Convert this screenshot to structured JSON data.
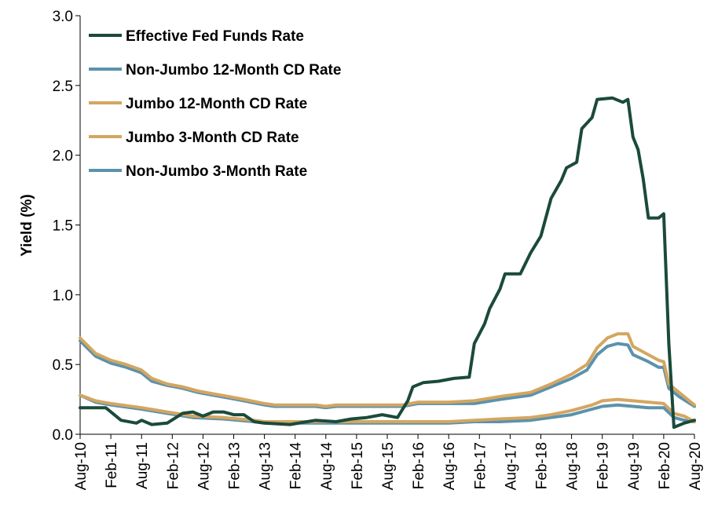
{
  "chart_data": {
    "type": "line",
    "ylabel": "Yield (%)",
    "xlabel": "",
    "ylim": [
      0.0,
      3.0
    ],
    "y_ticks": [
      "0.0",
      "0.5",
      "1.0",
      "1.5",
      "2.0",
      "2.5",
      "3.0"
    ],
    "y_tick_values": [
      0,
      0.5,
      1.0,
      1.5,
      2.0,
      2.5,
      3.0
    ],
    "x_range": [
      "2010-08",
      "2020-08"
    ],
    "x_ticks": [
      "Aug-10",
      "Feb-11",
      "Aug-11",
      "Feb-12",
      "Aug-12",
      "Feb-13",
      "Aug-13",
      "Feb-14",
      "Aug-14",
      "Feb-15",
      "Aug-15",
      "Feb-16",
      "Aug-16",
      "Feb-17",
      "Aug-17",
      "Feb-18",
      "Aug-18",
      "Feb-19",
      "Aug-19",
      "Feb-20",
      "Aug-20"
    ],
    "x_tick_dates": [
      "2010-08",
      "2011-02",
      "2011-08",
      "2012-02",
      "2012-08",
      "2013-02",
      "2013-08",
      "2014-02",
      "2014-08",
      "2015-02",
      "2015-08",
      "2016-02",
      "2016-08",
      "2017-02",
      "2017-08",
      "2018-02",
      "2018-08",
      "2019-02",
      "2019-08",
      "2020-02",
      "2020-08"
    ],
    "grid": false,
    "legend_position": "top-left",
    "series": [
      {
        "name": "Effective Fed Funds Rate",
        "color": "#1b4a3a",
        "points": [
          [
            "2010-08",
            0.19
          ],
          [
            "2011-01",
            0.19
          ],
          [
            "2011-04",
            0.1
          ],
          [
            "2011-07",
            0.08
          ],
          [
            "2011-08",
            0.1
          ],
          [
            "2011-10",
            0.07
          ],
          [
            "2012-01",
            0.08
          ],
          [
            "2012-04",
            0.15
          ],
          [
            "2012-06",
            0.16
          ],
          [
            "2012-08",
            0.13
          ],
          [
            "2012-10",
            0.16
          ],
          [
            "2012-12",
            0.16
          ],
          [
            "2013-02",
            0.14
          ],
          [
            "2013-04",
            0.14
          ],
          [
            "2013-06",
            0.09
          ],
          [
            "2013-08",
            0.08
          ],
          [
            "2014-01",
            0.07
          ],
          [
            "2014-06",
            0.1
          ],
          [
            "2014-10",
            0.09
          ],
          [
            "2015-01",
            0.11
          ],
          [
            "2015-04",
            0.12
          ],
          [
            "2015-07",
            0.14
          ],
          [
            "2015-10",
            0.12
          ],
          [
            "2015-12",
            0.24
          ],
          [
            "2016-01",
            0.34
          ],
          [
            "2016-03",
            0.37
          ],
          [
            "2016-06",
            0.38
          ],
          [
            "2016-09",
            0.4
          ],
          [
            "2016-12",
            0.41
          ],
          [
            "2017-01",
            0.65
          ],
          [
            "2017-03",
            0.79
          ],
          [
            "2017-04",
            0.9
          ],
          [
            "2017-06",
            1.04
          ],
          [
            "2017-07",
            1.15
          ],
          [
            "2017-10",
            1.15
          ],
          [
            "2017-12",
            1.3
          ],
          [
            "2018-02",
            1.42
          ],
          [
            "2018-04",
            1.69
          ],
          [
            "2018-06",
            1.82
          ],
          [
            "2018-07",
            1.91
          ],
          [
            "2018-09",
            1.95
          ],
          [
            "2018-10",
            2.19
          ],
          [
            "2018-12",
            2.27
          ],
          [
            "2019-01",
            2.4
          ],
          [
            "2019-04",
            2.41
          ],
          [
            "2019-06",
            2.38
          ],
          [
            "2019-07",
            2.4
          ],
          [
            "2019-08",
            2.13
          ],
          [
            "2019-09",
            2.04
          ],
          [
            "2019-10",
            1.83
          ],
          [
            "2019-11",
            1.55
          ],
          [
            "2020-01",
            1.55
          ],
          [
            "2020-02",
            1.58
          ],
          [
            "2020-03",
            0.65
          ],
          [
            "2020-04",
            0.05
          ],
          [
            "2020-06",
            0.08
          ],
          [
            "2020-08",
            0.1
          ]
        ]
      },
      {
        "name": "Non-Jumbo 12-Month CD Rate",
        "color": "#5b92ad",
        "points": [
          [
            "2010-08",
            0.67
          ],
          [
            "2010-11",
            0.56
          ],
          [
            "2011-02",
            0.51
          ],
          [
            "2011-05",
            0.48
          ],
          [
            "2011-08",
            0.44
          ],
          [
            "2011-10",
            0.38
          ],
          [
            "2012-01",
            0.35
          ],
          [
            "2012-04",
            0.33
          ],
          [
            "2012-07",
            0.3
          ],
          [
            "2012-10",
            0.28
          ],
          [
            "2013-01",
            0.26
          ],
          [
            "2013-04",
            0.24
          ],
          [
            "2013-08",
            0.21
          ],
          [
            "2013-10",
            0.2
          ],
          [
            "2014-06",
            0.2
          ],
          [
            "2014-08",
            0.19
          ],
          [
            "2014-10",
            0.2
          ],
          [
            "2015-06",
            0.2
          ],
          [
            "2015-11",
            0.2
          ],
          [
            "2016-02",
            0.22
          ],
          [
            "2016-08",
            0.22
          ],
          [
            "2017-01",
            0.22
          ],
          [
            "2017-06",
            0.25
          ],
          [
            "2017-12",
            0.28
          ],
          [
            "2018-04",
            0.34
          ],
          [
            "2018-08",
            0.4
          ],
          [
            "2018-11",
            0.46
          ],
          [
            "2019-01",
            0.57
          ],
          [
            "2019-03",
            0.63
          ],
          [
            "2019-05",
            0.65
          ],
          [
            "2019-07",
            0.64
          ],
          [
            "2019-08",
            0.57
          ],
          [
            "2019-11",
            0.52
          ],
          [
            "2020-01",
            0.48
          ],
          [
            "2020-02",
            0.48
          ],
          [
            "2020-03",
            0.33
          ],
          [
            "2020-05",
            0.27
          ],
          [
            "2020-08",
            0.2
          ]
        ]
      },
      {
        "name": "Jumbo 12-Month CD Rate",
        "color": "#d4a660",
        "points": [
          [
            "2010-08",
            0.69
          ],
          [
            "2010-11",
            0.58
          ],
          [
            "2011-02",
            0.53
          ],
          [
            "2011-05",
            0.5
          ],
          [
            "2011-08",
            0.46
          ],
          [
            "2011-10",
            0.4
          ],
          [
            "2012-01",
            0.36
          ],
          [
            "2012-04",
            0.34
          ],
          [
            "2012-07",
            0.31
          ],
          [
            "2012-10",
            0.29
          ],
          [
            "2013-01",
            0.27
          ],
          [
            "2013-04",
            0.25
          ],
          [
            "2013-08",
            0.22
          ],
          [
            "2013-10",
            0.21
          ],
          [
            "2014-06",
            0.21
          ],
          [
            "2014-08",
            0.2
          ],
          [
            "2014-10",
            0.21
          ],
          [
            "2015-06",
            0.21
          ],
          [
            "2015-11",
            0.21
          ],
          [
            "2016-02",
            0.23
          ],
          [
            "2016-08",
            0.23
          ],
          [
            "2017-01",
            0.24
          ],
          [
            "2017-06",
            0.27
          ],
          [
            "2017-12",
            0.3
          ],
          [
            "2018-04",
            0.36
          ],
          [
            "2018-08",
            0.43
          ],
          [
            "2018-11",
            0.5
          ],
          [
            "2019-01",
            0.62
          ],
          [
            "2019-03",
            0.69
          ],
          [
            "2019-05",
            0.72
          ],
          [
            "2019-07",
            0.72
          ],
          [
            "2019-08",
            0.63
          ],
          [
            "2019-11",
            0.57
          ],
          [
            "2020-01",
            0.53
          ],
          [
            "2020-02",
            0.52
          ],
          [
            "2020-03",
            0.36
          ],
          [
            "2020-05",
            0.3
          ],
          [
            "2020-08",
            0.21
          ]
        ]
      },
      {
        "name": "Jumbo 3-Month CD Rate",
        "color": "#d4a660",
        "points": [
          [
            "2010-08",
            0.28
          ],
          [
            "2010-11",
            0.24
          ],
          [
            "2011-02",
            0.22
          ],
          [
            "2011-08",
            0.19
          ],
          [
            "2012-01",
            0.16
          ],
          [
            "2012-06",
            0.13
          ],
          [
            "2012-12",
            0.12
          ],
          [
            "2013-06",
            0.1
          ],
          [
            "2013-08",
            0.09
          ],
          [
            "2015-12",
            0.09
          ],
          [
            "2016-08",
            0.09
          ],
          [
            "2017-01",
            0.1
          ],
          [
            "2017-06",
            0.11
          ],
          [
            "2017-12",
            0.12
          ],
          [
            "2018-04",
            0.14
          ],
          [
            "2018-08",
            0.17
          ],
          [
            "2018-12",
            0.21
          ],
          [
            "2019-02",
            0.24
          ],
          [
            "2019-05",
            0.25
          ],
          [
            "2019-08",
            0.24
          ],
          [
            "2019-11",
            0.23
          ],
          [
            "2020-02",
            0.22
          ],
          [
            "2020-04",
            0.15
          ],
          [
            "2020-06",
            0.13
          ],
          [
            "2020-08",
            0.09
          ]
        ]
      },
      {
        "name": "Non-Jumbo 3-Month Rate",
        "color": "#5b92ad",
        "points": [
          [
            "2010-08",
            0.28
          ],
          [
            "2010-11",
            0.23
          ],
          [
            "2011-02",
            0.21
          ],
          [
            "2011-08",
            0.18
          ],
          [
            "2012-01",
            0.15
          ],
          [
            "2012-06",
            0.12
          ],
          [
            "2012-12",
            0.11
          ],
          [
            "2013-06",
            0.09
          ],
          [
            "2013-08",
            0.08
          ],
          [
            "2015-12",
            0.08
          ],
          [
            "2016-08",
            0.08
          ],
          [
            "2017-01",
            0.09
          ],
          [
            "2017-06",
            0.09
          ],
          [
            "2017-12",
            0.1
          ],
          [
            "2018-04",
            0.12
          ],
          [
            "2018-08",
            0.14
          ],
          [
            "2018-12",
            0.18
          ],
          [
            "2019-02",
            0.2
          ],
          [
            "2019-05",
            0.21
          ],
          [
            "2019-08",
            0.2
          ],
          [
            "2019-11",
            0.19
          ],
          [
            "2020-02",
            0.19
          ],
          [
            "2020-04",
            0.12
          ],
          [
            "2020-06",
            0.1
          ],
          [
            "2020-08",
            0.09
          ]
        ]
      }
    ]
  }
}
